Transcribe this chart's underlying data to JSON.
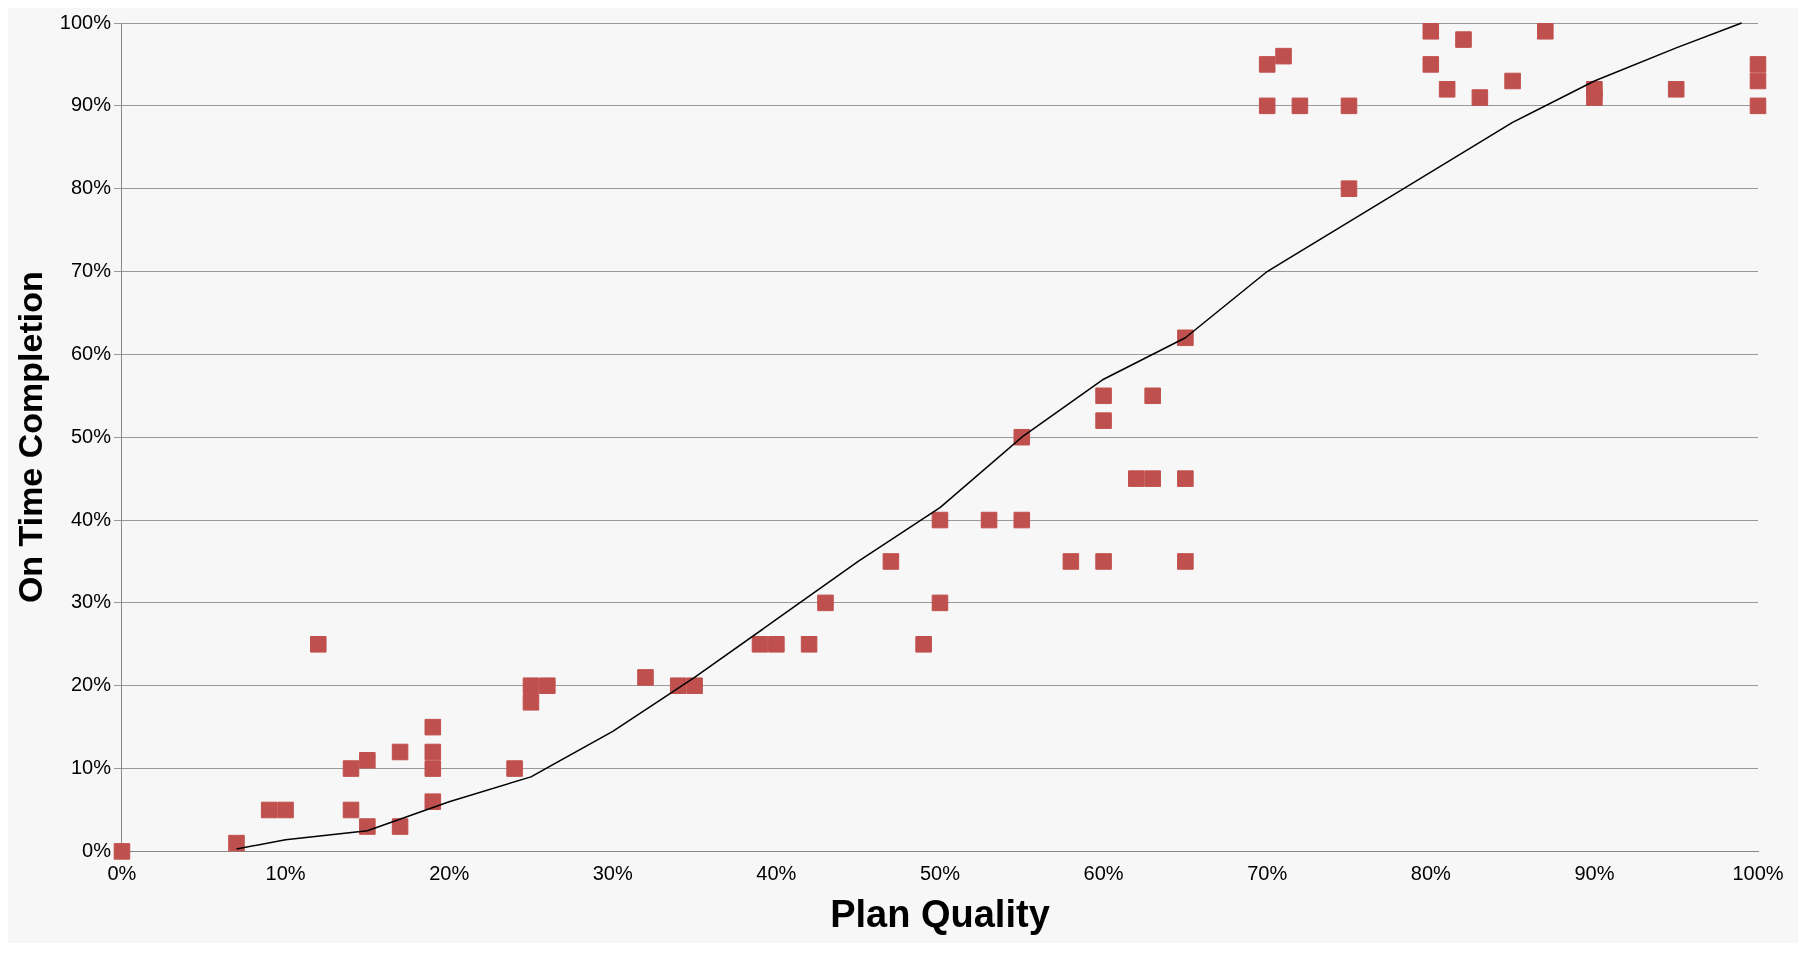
{
  "chart_data": {
    "type": "scatter",
    "xlabel": "Plan Quality",
    "ylabel": "On Time Completion",
    "xlim": [
      0,
      100
    ],
    "ylim": [
      0,
      100
    ],
    "xticks": [
      {
        "value": 0,
        "label": "0%"
      },
      {
        "value": 10,
        "label": "10%"
      },
      {
        "value": 20,
        "label": "20%"
      },
      {
        "value": 30,
        "label": "30%"
      },
      {
        "value": 40,
        "label": "40%"
      },
      {
        "value": 50,
        "label": "50%"
      },
      {
        "value": 60,
        "label": "60%"
      },
      {
        "value": 70,
        "label": "70%"
      },
      {
        "value": 80,
        "label": "80%"
      },
      {
        "value": 90,
        "label": "90%"
      },
      {
        "value": 100,
        "label": "100%"
      }
    ],
    "yticks": [
      {
        "value": 0,
        "label": "0%"
      },
      {
        "value": 10,
        "label": "10%"
      },
      {
        "value": 20,
        "label": "20%"
      },
      {
        "value": 30,
        "label": "30%"
      },
      {
        "value": 40,
        "label": "40%"
      },
      {
        "value": 50,
        "label": "50%"
      },
      {
        "value": 60,
        "label": "60%"
      },
      {
        "value": 70,
        "label": "70%"
      },
      {
        "value": 80,
        "label": "80%"
      },
      {
        "value": 90,
        "label": "90%"
      },
      {
        "value": 100,
        "label": "100%"
      }
    ],
    "grid": "y",
    "legend": false,
    "series": [
      {
        "type": "scatter",
        "marker": "square",
        "color": "#c0504d",
        "x": [
          0,
          7,
          9,
          10,
          12,
          14,
          14,
          15,
          15,
          17,
          17,
          19,
          19,
          19,
          19,
          24,
          25,
          25,
          26,
          32,
          34,
          35,
          39,
          40,
          42,
          43,
          47,
          49,
          50,
          50,
          53,
          55,
          55,
          58,
          60,
          60,
          60,
          62,
          63,
          63,
          65,
          65,
          65,
          70,
          70,
          71,
          72,
          75,
          75,
          80,
          80,
          81,
          82,
          83,
          85,
          87,
          90,
          90,
          95,
          100,
          100,
          100
        ],
        "values": [
          0,
          1,
          5,
          5,
          25,
          10,
          5,
          11,
          3,
          12,
          3,
          15,
          12,
          10,
          6,
          10,
          20,
          18,
          20,
          21,
          20,
          20,
          25,
          25,
          25,
          30,
          35,
          25,
          40,
          30,
          40,
          50,
          40,
          35,
          55,
          52,
          35,
          45,
          45,
          55,
          62,
          45,
          35,
          95,
          90,
          96,
          90,
          90,
          80,
          99,
          95,
          92,
          98,
          91,
          93,
          99,
          92,
          91,
          92,
          95,
          93,
          90
        ]
      },
      {
        "type": "line",
        "marker": "none",
        "line_style": "solid",
        "color": "#000000",
        "x": [
          7,
          10,
          15,
          20,
          25,
          30,
          35,
          40,
          45,
          50,
          55,
          60,
          65,
          70,
          75,
          80,
          85,
          90,
          95,
          99
        ],
        "values": [
          0.3,
          1.4,
          2.5,
          6,
          9,
          14.5,
          21,
          28,
          35,
          41.5,
          50,
          57,
          62,
          70,
          76,
          82,
          88,
          93,
          97,
          100
        ]
      }
    ]
  }
}
